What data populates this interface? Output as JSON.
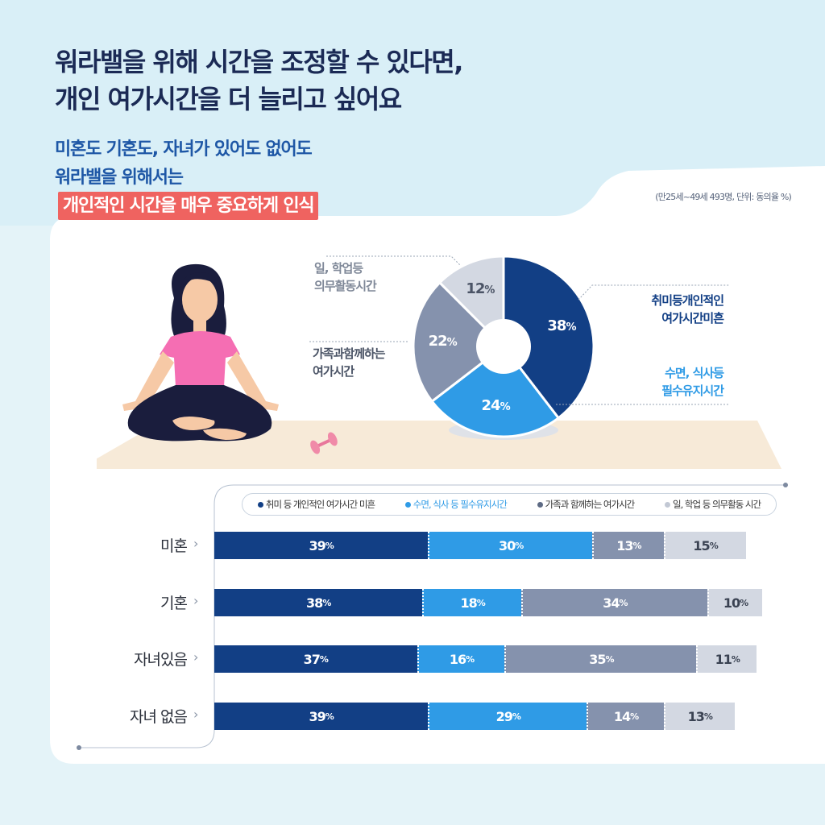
{
  "header": {
    "title_line1": "워라밸을 위해 시간을 조정할 수 있다면,",
    "title_line2": "개인 여가시간을 더 늘리고 싶어요",
    "subtitle_line1": "미혼도 기혼도, 자녀가 있어도 없어도",
    "subtitle_line2": "워라밸을 위해서는",
    "subtitle_highlight": "개인적인 시간을 매우 중요하게 인식",
    "source_note": "(만25세~49세 493명, 단위: 동의율 %)"
  },
  "colors": {
    "navy": "#123f85",
    "blue": "#2f9be6",
    "gray": "#8592ad",
    "light": "#d3d8e2",
    "accent": "#ef6360"
  },
  "illustration": {
    "icons": [
      "yoga-woman-icon",
      "dumbbell-icon"
    ]
  },
  "chart_data": [
    {
      "type": "pie",
      "categories": [
        "취미 등 개인적인 여가시간 미흔",
        "수면, 식사 등 필수유지시간",
        "가족과 함께하는 여가시간",
        "일, 학업 등 의무활동 시간"
      ],
      "values": [
        38,
        24,
        22,
        12
      ],
      "value_labels": [
        "38",
        "24",
        "22",
        "12"
      ],
      "unit": "%",
      "callouts": [
        [
          "취미등개인적인",
          "여가시간미흔"
        ],
        [
          "수면, 식사등",
          "필수유지시간"
        ],
        [
          "가족과함께하는",
          "여가시간"
        ],
        [
          "일, 학업등",
          "의무활동시간"
        ]
      ]
    },
    {
      "type": "bar",
      "orientation": "horizontal",
      "stacked": true,
      "unit": "%",
      "categories": [
        "미혼",
        "기혼",
        "자녀있음",
        "자녀 없음"
      ],
      "legend_placement": "top",
      "legend": [
        "취미 등 개인적인 여가시간 미흔",
        "수면, 식사 등 필수유지시간",
        "가족과 함께하는 여가시간",
        "일, 학업 등 의무활동 시간"
      ],
      "series": [
        {
          "name": "취미 등 개인적인 여가시간 미흔",
          "values": [
            39,
            38,
            37,
            39
          ]
        },
        {
          "name": "수면, 식사 등 필수유지시간",
          "values": [
            30,
            18,
            16,
            29
          ]
        },
        {
          "name": "가족과 함께하는 여가시간",
          "values": [
            13,
            34,
            35,
            14
          ]
        },
        {
          "name": "일, 학업 등 의무활동 시간",
          "values": [
            15,
            10,
            11,
            13
          ]
        }
      ]
    }
  ]
}
